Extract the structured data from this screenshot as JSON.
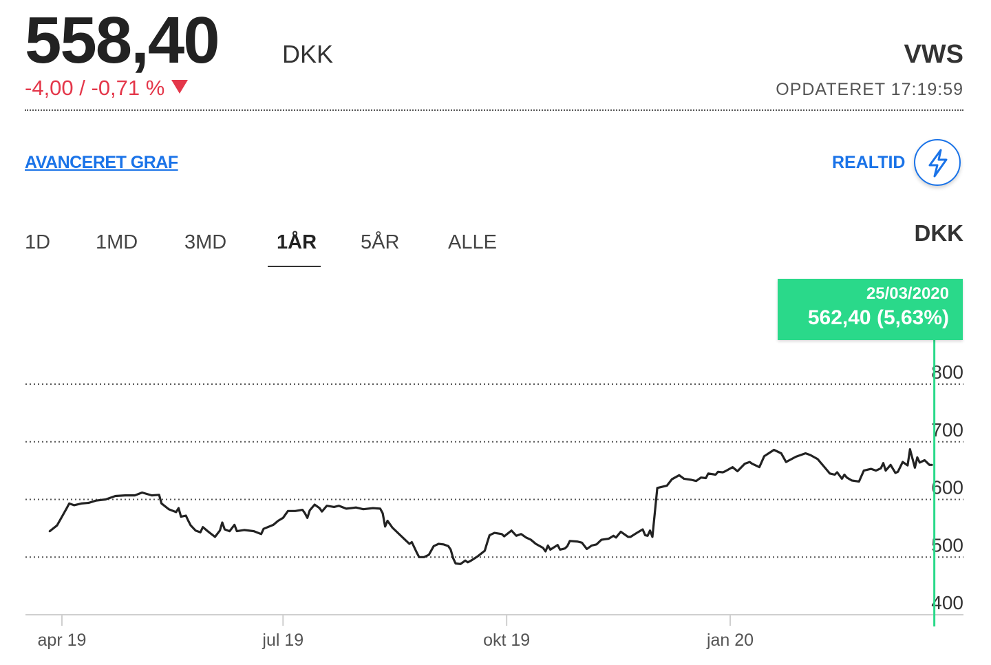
{
  "quote": {
    "price": "558,40",
    "currency": "DKK",
    "change": "-4,00 / -0,71 %",
    "ticker": "VWS",
    "updated": "OPDATERET 17:19:59"
  },
  "links": {
    "advanced_chart": "AVANCERET GRAF",
    "realtime": "REALTID"
  },
  "tabs": [
    {
      "label": "1D"
    },
    {
      "label": "1MD"
    },
    {
      "label": "3MD"
    },
    {
      "label": "1ÅR",
      "active": true
    },
    {
      "label": "5ÅR"
    },
    {
      "label": "ALLE"
    }
  ],
  "axis_currency": "DKK",
  "tooltip": {
    "date": "25/03/2020",
    "value": "562,40 (5,63%)"
  },
  "colors": {
    "down": "#e4374a",
    "link": "#1a73e8",
    "crosshair": "#2ad98a",
    "line": "#222222"
  },
  "chart_data": {
    "type": "line",
    "title": "",
    "xlabel": "",
    "ylabel": "",
    "y_ticks": [
      400,
      500,
      600,
      700,
      800
    ],
    "ylim": [
      400,
      800
    ],
    "y_grid": true,
    "x_ticks": [
      {
        "label": "apr 19",
        "day": 7
      },
      {
        "label": "jul 19",
        "day": 98
      },
      {
        "label": "okt 19",
        "day": 190
      },
      {
        "label": "jan 20",
        "day": 282
      }
    ],
    "x_domain_days": [
      -8,
      378
    ],
    "crosshair_day": 366,
    "series": [
      {
        "values": [
          [
            2,
            545
          ],
          [
            5,
            555
          ],
          [
            7,
            570
          ],
          [
            9,
            585
          ],
          [
            10,
            593
          ],
          [
            12,
            590
          ],
          [
            15,
            593
          ],
          [
            18,
            594
          ],
          [
            21,
            598
          ],
          [
            25,
            600
          ],
          [
            29,
            606
          ],
          [
            33,
            607
          ],
          [
            37,
            607
          ],
          [
            40,
            612
          ],
          [
            44,
            607
          ],
          [
            47,
            608
          ],
          [
            48,
            593
          ],
          [
            51,
            583
          ],
          [
            54,
            578
          ],
          [
            55,
            585
          ],
          [
            56,
            570
          ],
          [
            58,
            572
          ],
          [
            59,
            563
          ],
          [
            60,
            555
          ],
          [
            62,
            546
          ],
          [
            64,
            543
          ],
          [
            65,
            552
          ],
          [
            67,
            545
          ],
          [
            70,
            535
          ],
          [
            72,
            546
          ],
          [
            73,
            560
          ],
          [
            74,
            548
          ],
          [
            76,
            545
          ],
          [
            78,
            556
          ],
          [
            79,
            545
          ],
          [
            82,
            547
          ],
          [
            86,
            545
          ],
          [
            89,
            540
          ],
          [
            90,
            549
          ],
          [
            94,
            556
          ],
          [
            96,
            563
          ],
          [
            98,
            568
          ],
          [
            99,
            574
          ],
          [
            100,
            580
          ],
          [
            103,
            580
          ],
          [
            106,
            582
          ],
          [
            107,
            576
          ],
          [
            108,
            568
          ],
          [
            109,
            581
          ],
          [
            111,
            591
          ],
          [
            113,
            585
          ],
          [
            114,
            579
          ],
          [
            116,
            589
          ],
          [
            119,
            587
          ],
          [
            121,
            589
          ],
          [
            124,
            584
          ],
          [
            126,
            585
          ],
          [
            128,
            586
          ],
          [
            131,
            583
          ],
          [
            135,
            585
          ],
          [
            138,
            584
          ],
          [
            139,
            576
          ],
          [
            140,
            553
          ],
          [
            141,
            563
          ],
          [
            143,
            551
          ],
          [
            146,
            539
          ],
          [
            148,
            531
          ],
          [
            150,
            523
          ],
          [
            151,
            526
          ],
          [
            153,
            508
          ],
          [
            154,
            500
          ],
          [
            156,
            500
          ],
          [
            158,
            504
          ],
          [
            160,
            519
          ],
          [
            162,
            523
          ],
          [
            164,
            522
          ],
          [
            166,
            519
          ],
          [
            167,
            513
          ],
          [
            168,
            498
          ],
          [
            169,
            489
          ],
          [
            171,
            488
          ],
          [
            173,
            494
          ],
          [
            174,
            491
          ],
          [
            175,
            493
          ],
          [
            178,
            501
          ],
          [
            181,
            511
          ],
          [
            182,
            525
          ],
          [
            183,
            538
          ],
          [
            185,
            542
          ],
          [
            188,
            540
          ],
          [
            189,
            536
          ],
          [
            192,
            546
          ],
          [
            194,
            537
          ],
          [
            196,
            540
          ],
          [
            198,
            534
          ],
          [
            200,
            530
          ],
          [
            202,
            523
          ],
          [
            205,
            516
          ],
          [
            206,
            510
          ],
          [
            207,
            520
          ],
          [
            208,
            513
          ],
          [
            211,
            521
          ],
          [
            212,
            513
          ],
          [
            214,
            515
          ],
          [
            215,
            519
          ],
          [
            216,
            528
          ],
          [
            219,
            527
          ],
          [
            221,
            525
          ],
          [
            223,
            514
          ],
          [
            225,
            520
          ],
          [
            227,
            522
          ],
          [
            229,
            530
          ],
          [
            232,
            532
          ],
          [
            234,
            537
          ],
          [
            235,
            534
          ],
          [
            237,
            544
          ],
          [
            239,
            538
          ],
          [
            240,
            535
          ],
          [
            241,
            535
          ],
          [
            244,
            543
          ],
          [
            246,
            548
          ],
          [
            247,
            538
          ],
          [
            248,
            537
          ],
          [
            249,
            546
          ],
          [
            250,
            535
          ],
          [
            252,
            620
          ],
          [
            256,
            624
          ],
          [
            258,
            635
          ],
          [
            261,
            642
          ],
          [
            263,
            636
          ],
          [
            266,
            634
          ],
          [
            268,
            632
          ],
          [
            270,
            638
          ],
          [
            272,
            637
          ],
          [
            273,
            645
          ],
          [
            276,
            643
          ],
          [
            277,
            648
          ],
          [
            279,
            647
          ],
          [
            280,
            649
          ],
          [
            283,
            656
          ],
          [
            285,
            649
          ],
          [
            288,
            662
          ],
          [
            290,
            665
          ],
          [
            291,
            662
          ],
          [
            294,
            656
          ],
          [
            296,
            675
          ],
          [
            300,
            686
          ],
          [
            303,
            680
          ],
          [
            305,
            665
          ],
          [
            309,
            674
          ],
          [
            311,
            677
          ],
          [
            313,
            680
          ],
          [
            315,
            677
          ],
          [
            318,
            670
          ],
          [
            321,
            655
          ],
          [
            323,
            645
          ],
          [
            325,
            643
          ],
          [
            326,
            647
          ],
          [
            328,
            636
          ],
          [
            329,
            643
          ],
          [
            330,
            638
          ],
          [
            332,
            633
          ],
          [
            335,
            631
          ],
          [
            337,
            650
          ],
          [
            340,
            653
          ],
          [
            342,
            650
          ],
          [
            344,
            654
          ],
          [
            345,
            663
          ],
          [
            346,
            650
          ],
          [
            348,
            660
          ],
          [
            350,
            646
          ],
          [
            351,
            648
          ],
          [
            353,
            665
          ],
          [
            355,
            659
          ],
          [
            356,
            687
          ],
          [
            358,
            655
          ],
          [
            359,
            673
          ],
          [
            360,
            664
          ],
          [
            362,
            668
          ],
          [
            364,
            660
          ],
          [
            365,
            660
          ]
        ]
      }
    ]
  }
}
